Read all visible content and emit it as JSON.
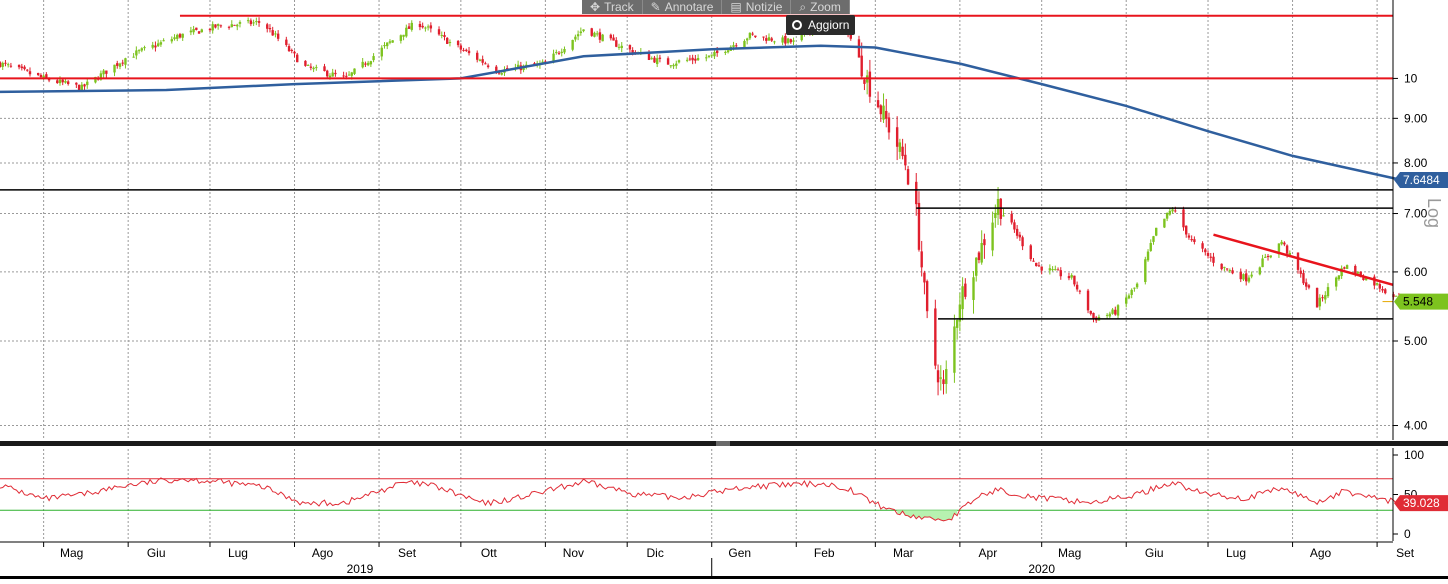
{
  "toolbar": {
    "track_label": "Track",
    "annotate_label": "Annotare",
    "news_label": "Notizie",
    "zoom_label": "Zoom",
    "refresh_label": "Aggiorn"
  },
  "colors": {
    "up_candle": "#7dc31f",
    "down_candle": "#e01f2e",
    "moving_average": "#2f5f9e",
    "resistance_line": "#e8141c",
    "support_line": "#000000",
    "rsi_line": "#e02c36",
    "rsi_upper": "#e02c36",
    "rsi_lower": "#2db12d",
    "rsi_fill": "#b7f2b0",
    "grid": "#9a9a9a"
  },
  "chart_data": {
    "type": "candlestick",
    "price_scale": "log",
    "scale_label": "Log",
    "x_range": [
      "2019-04-15",
      "2020-09-05"
    ],
    "price_range": [
      3.85,
      12.3
    ],
    "months": [
      {
        "label": "Mag",
        "date": "2019-05-01"
      },
      {
        "label": "Giu",
        "date": "2019-06-01"
      },
      {
        "label": "Lug",
        "date": "2019-07-01"
      },
      {
        "label": "Ago",
        "date": "2019-08-01"
      },
      {
        "label": "Set",
        "date": "2019-09-01"
      },
      {
        "label": "Ott",
        "date": "2019-10-01"
      },
      {
        "label": "Nov",
        "date": "2019-11-01"
      },
      {
        "label": "Dic",
        "date": "2019-12-01"
      },
      {
        "label": "Gen",
        "date": "2020-01-01"
      },
      {
        "label": "Feb",
        "date": "2020-02-01"
      },
      {
        "label": "Mar",
        "date": "2020-03-01"
      },
      {
        "label": "Apr",
        "date": "2020-04-01"
      },
      {
        "label": "Mag",
        "date": "2020-05-01"
      },
      {
        "label": "Giu",
        "date": "2020-06-01"
      },
      {
        "label": "Lug",
        "date": "2020-07-01"
      },
      {
        "label": "Ago",
        "date": "2020-08-01"
      },
      {
        "label": "Set",
        "date": "2020-09-01"
      }
    ],
    "years": [
      {
        "label": "2019",
        "date": "2019-08-25"
      },
      {
        "label": "2020",
        "date": "2020-05-01"
      }
    ],
    "year_divider": "2020-01-01",
    "price_ticks": [
      {
        "value": 10,
        "label": "10"
      },
      {
        "value": 9,
        "label": "9.00"
      },
      {
        "value": 8,
        "label": "8.00"
      },
      {
        "value": 7,
        "label": "7.00"
      },
      {
        "value": 6,
        "label": "6.00"
      },
      {
        "value": 5,
        "label": "5.00"
      },
      {
        "value": 4,
        "label": "4.00"
      }
    ],
    "price_anchors": [
      [
        "2019-04-15",
        10.4
      ],
      [
        "2019-05-01",
        10.0
      ],
      [
        "2019-05-15",
        9.75
      ],
      [
        "2019-06-01",
        10.6
      ],
      [
        "2019-06-20",
        11.2
      ],
      [
        "2019-07-05",
        11.5
      ],
      [
        "2019-07-20",
        11.6
      ],
      [
        "2019-08-05",
        10.3
      ],
      [
        "2019-08-20",
        10.0
      ],
      [
        "2019-09-05",
        11.0
      ],
      [
        "2019-09-15",
        11.6
      ],
      [
        "2019-10-01",
        10.8
      ],
      [
        "2019-10-15",
        10.2
      ],
      [
        "2019-11-01",
        10.4
      ],
      [
        "2019-11-15",
        11.4
      ],
      [
        "2019-12-01",
        10.8
      ],
      [
        "2019-12-15",
        10.4
      ],
      [
        "2020-01-01",
        10.6
      ],
      [
        "2020-01-15",
        11.2
      ],
      [
        "2020-01-31",
        11.0
      ],
      [
        "2020-02-10",
        11.6
      ],
      [
        "2020-02-20",
        11.3
      ],
      [
        "2020-02-28",
        9.8
      ],
      [
        "2020-03-06",
        8.8
      ],
      [
        "2020-03-12",
        8.0
      ],
      [
        "2020-03-16",
        7.0
      ],
      [
        "2020-03-20",
        5.3
      ],
      [
        "2020-03-23",
        4.7
      ],
      [
        "2020-03-26",
        4.4
      ],
      [
        "2020-04-01",
        5.6
      ],
      [
        "2020-04-08",
        6.3
      ],
      [
        "2020-04-15",
        7.2
      ],
      [
        "2020-04-21",
        6.7
      ],
      [
        "2020-04-29",
        6.1
      ],
      [
        "2020-05-12",
        5.9
      ],
      [
        "2020-05-20",
        5.3
      ],
      [
        "2020-05-28",
        5.4
      ],
      [
        "2020-06-05",
        5.8
      ],
      [
        "2020-06-12",
        6.7
      ],
      [
        "2020-06-18",
        7.1
      ],
      [
        "2020-06-25",
        6.5
      ],
      [
        "2020-07-05",
        6.1
      ],
      [
        "2020-07-15",
        5.9
      ],
      [
        "2020-07-28",
        6.5
      ],
      [
        "2020-08-10",
        5.5
      ],
      [
        "2020-08-20",
        6.1
      ],
      [
        "2020-09-01",
        5.8
      ],
      [
        "2020-09-10",
        5.55
      ]
    ],
    "moving_average": [
      [
        "2019-04-15",
        9.65
      ],
      [
        "2019-06-15",
        9.7
      ],
      [
        "2019-08-01",
        9.85
      ],
      [
        "2019-10-01",
        10.0
      ],
      [
        "2019-11-15",
        10.6
      ],
      [
        "2020-01-01",
        10.8
      ],
      [
        "2020-02-10",
        10.9
      ],
      [
        "2020-03-01",
        10.85
      ],
      [
        "2020-04-01",
        10.4
      ],
      [
        "2020-05-01",
        9.85
      ],
      [
        "2020-06-01",
        9.3
      ],
      [
        "2020-07-01",
        8.7
      ],
      [
        "2020-08-01",
        8.15
      ],
      [
        "2020-09-10",
        7.6484
      ]
    ],
    "ma_last": {
      "value": 7.6484,
      "label": "7.6484"
    },
    "last_price": {
      "value": 5.548,
      "label": "5.548"
    },
    "resistance_lines": [
      {
        "from": "2019-06-20",
        "to": "2020-09-30",
        "value": 11.8
      },
      {
        "from": "2019-04-15",
        "to": "2020-09-30",
        "value": 10.0
      }
    ],
    "support_lines": [
      {
        "from": "2019-04-15",
        "to": "2020-09-30",
        "value": 7.45
      },
      {
        "from": "2020-03-16",
        "to": "2020-09-30",
        "value": 7.1
      },
      {
        "from": "2020-03-24",
        "to": "2020-09-30",
        "value": 5.3
      }
    ],
    "trend_line": {
      "from": [
        "2020-07-03",
        6.62
      ],
      "to": [
        "2020-09-30",
        5.8
      ]
    },
    "rsi": {
      "ticks": [
        {
          "value": 100,
          "label": "100"
        },
        {
          "value": 50,
          "label": "50"
        },
        {
          "value": 0,
          "label": "0"
        }
      ],
      "upper": 70,
      "lower": 30,
      "last": {
        "value": 39.028,
        "label": "39.028"
      },
      "anchors": [
        [
          "2019-04-15",
          62
        ],
        [
          "2019-05-01",
          44
        ],
        [
          "2019-05-15",
          50
        ],
        [
          "2019-06-01",
          62
        ],
        [
          "2019-06-20",
          70
        ],
        [
          "2019-07-05",
          66
        ],
        [
          "2019-07-20",
          60
        ],
        [
          "2019-08-05",
          38
        ],
        [
          "2019-08-20",
          40
        ],
        [
          "2019-09-10",
          65
        ],
        [
          "2019-09-20",
          62
        ],
        [
          "2019-10-10",
          38
        ],
        [
          "2019-10-25",
          48
        ],
        [
          "2019-11-15",
          66
        ],
        [
          "2019-12-05",
          50
        ],
        [
          "2019-12-20",
          46
        ],
        [
          "2020-01-15",
          60
        ],
        [
          "2020-02-10",
          64
        ],
        [
          "2020-02-20",
          58
        ],
        [
          "2020-03-01",
          38
        ],
        [
          "2020-03-12",
          24
        ],
        [
          "2020-03-20",
          20
        ],
        [
          "2020-03-28",
          18
        ],
        [
          "2020-04-08",
          48
        ],
        [
          "2020-04-15",
          56
        ],
        [
          "2020-04-29",
          46
        ],
        [
          "2020-05-20",
          40
        ],
        [
          "2020-06-05",
          50
        ],
        [
          "2020-06-18",
          66
        ],
        [
          "2020-06-28",
          52
        ],
        [
          "2020-07-15",
          45
        ],
        [
          "2020-07-28",
          58
        ],
        [
          "2020-08-10",
          40
        ],
        [
          "2020-08-20",
          54
        ],
        [
          "2020-09-10",
          39
        ]
      ]
    }
  }
}
